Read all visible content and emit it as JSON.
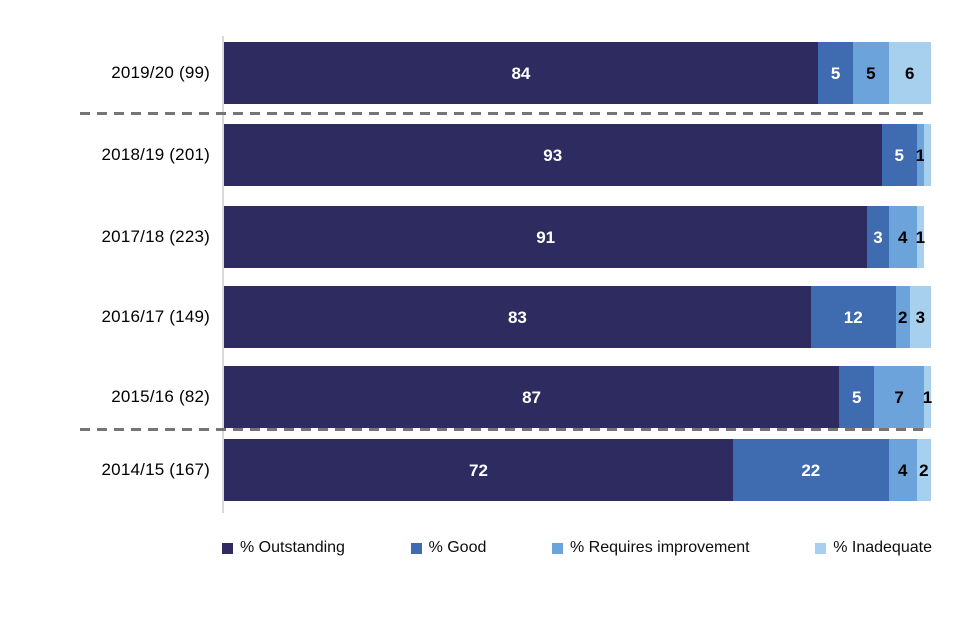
{
  "chart_data": {
    "type": "bar",
    "orientation": "horizontal",
    "stacked": true,
    "title": "",
    "xlabel": "",
    "ylabel": "",
    "xlim": [
      0,
      100
    ],
    "grid": false,
    "legend_position": "bottom",
    "categories": [
      "2019/20 (99)",
      "2018/19 (201)",
      "2017/18 (223)",
      "2016/17 (149)",
      "2015/16 (82)",
      "2014/15 (167)"
    ],
    "series": [
      {
        "name": "% Outstanding",
        "color": "#2e2b60",
        "label_color": "#ffffff",
        "values": [
          84,
          93,
          91,
          83,
          87,
          72
        ]
      },
      {
        "name": "% Good",
        "color": "#3f6bb0",
        "label_color": "#ffffff",
        "values": [
          5,
          5,
          3,
          12,
          5,
          22
        ]
      },
      {
        "name": "% Requires improvement",
        "color": "#6da3db",
        "label_color": "#000000",
        "values": [
          5,
          1,
          4,
          2,
          7,
          4
        ]
      },
      {
        "name": "% Inadequate",
        "color": "#a7cfee",
        "label_color": "#000000",
        "values": [
          6,
          1,
          1,
          3,
          1,
          2
        ]
      }
    ],
    "rows": [
      {
        "category": "2019/20 (99)",
        "values": [
          84,
          5,
          5,
          6
        ],
        "labels": [
          "84",
          "5",
          "5",
          "6"
        ]
      },
      {
        "category": "2018/19 (201)",
        "values": [
          93,
          5,
          1,
          1
        ],
        "labels": [
          "93",
          "5",
          "1",
          ""
        ]
      },
      {
        "category": "2017/18 (223)",
        "values": [
          91,
          3,
          4,
          1
        ],
        "labels": [
          "91",
          "3",
          "4",
          "1"
        ]
      },
      {
        "category": "2016/17 (149)",
        "values": [
          83,
          12,
          2,
          3
        ],
        "labels": [
          "83",
          "12",
          "2",
          "3"
        ]
      },
      {
        "category": "2015/16 (82)",
        "values": [
          87,
          5,
          7,
          1
        ],
        "labels": [
          "87",
          "5",
          "7",
          "1"
        ]
      },
      {
        "category": "2014/15 (167)",
        "values": [
          72,
          22,
          4,
          2
        ],
        "labels": [
          "72",
          "22",
          "4",
          "2"
        ]
      }
    ],
    "separators": {
      "style": "dashed",
      "color": "#757575",
      "after_categories": [
        "2019/20 (99)",
        "2015/16 (82)"
      ]
    },
    "axis_line_color": "#d9d9d9"
  }
}
